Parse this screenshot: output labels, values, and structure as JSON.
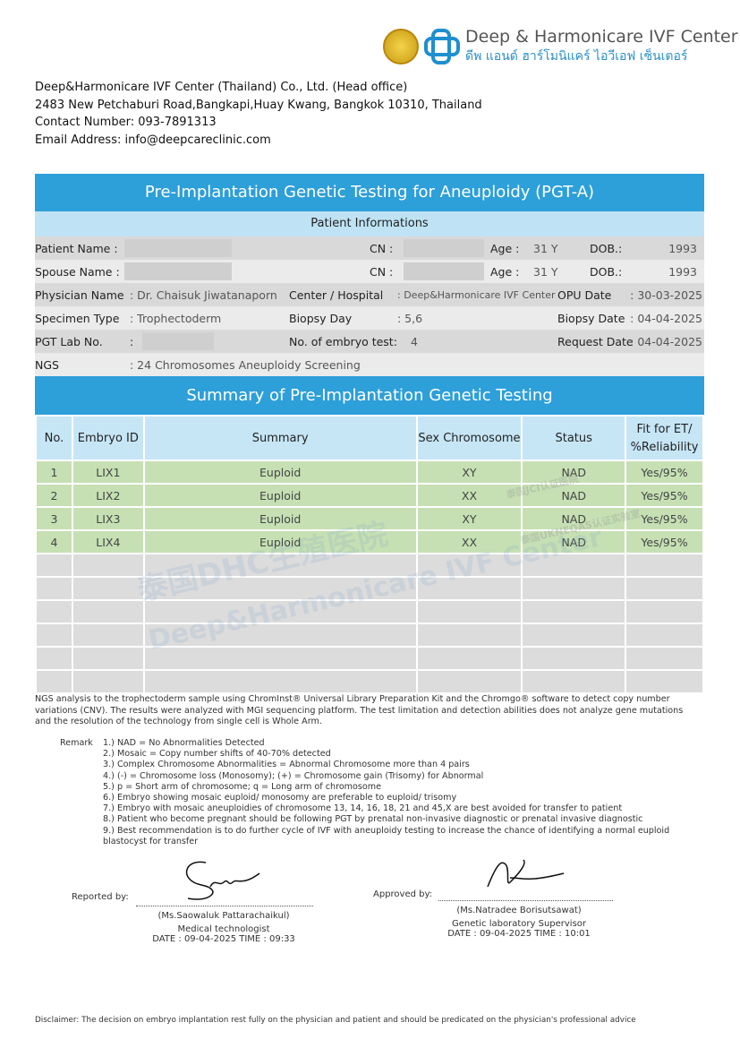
{
  "header": {
    "brand_en": "Deep & Harmonicare IVF Center",
    "brand_th": "ดีพ แอนด์ ฮาร์โมนิแคร์ ไอวีเอฟ เซ็นเตอร์",
    "address": [
      "Deep&Harmonicare IVF Center (Thailand) Co., Ltd. (Head office)",
      "2483 New Petchaburi Road,Bangkapi,Huay Kwang, Bangkok 10310, Thailand",
      "Contact Number: 093-7891313",
      "Email Address: info@deepcareclinic.com"
    ]
  },
  "title": "Pre-Implantation Genetic Testing for Aneuploidy (PGT-A)",
  "patient": {
    "heading": "Patient Informations",
    "patient_name_label": "Patient Name :",
    "cn_label": "CN :",
    "age_label": "Age :",
    "dob_label": "DOB.:",
    "patient_age": "31 Y",
    "patient_dob": "1993",
    "spouse_name_label": "Spouse Name :",
    "spouse_age": "31 Y",
    "spouse_dob": "1993",
    "physician_label": "Physician Name",
    "physician": ": Dr. Chaisuk Jiwatanaporn",
    "center_label": "Center / Hospital",
    "center": ": Deep&Harmonicare IVF Center",
    "opu_label": "OPU Date",
    "opu": ": 30-03-2025",
    "specimen_label": "Specimen Type",
    "specimen": ": Trophectoderm",
    "biopsy_day_label": "Biopsy Day",
    "biopsy_day": ":  5,6",
    "biopsy_date_label": "Biopsy Date",
    "biopsy_date": ": 04-04-2025",
    "lab_label": "PGT Lab No.",
    "lab_colon": ":",
    "embryo_count_label": "No. of embryo test:",
    "embryo_count": "4",
    "request_label": "Request Date",
    "request_date": ": 04-04-2025",
    "ngs_label": "NGS",
    "ngs": ": 24 Chromosomes Aneuploidy Screening"
  },
  "summary": {
    "heading": "Summary of Pre-Implantation Genetic Testing",
    "columns": [
      "No.",
      "Embryo ID",
      "Summary",
      "Sex Chromosome",
      "Status",
      "Fit for ET/",
      "%Reliability"
    ],
    "rows": [
      [
        "1",
        "LIX1",
        "Euploid",
        "XY",
        "NAD",
        "Yes/95%"
      ],
      [
        "2",
        "LIX2",
        "Euploid",
        "XX",
        "NAD",
        "Yes/95%"
      ],
      [
        "3",
        "LIX3",
        "Euploid",
        "XY",
        "NAD",
        "Yes/95%"
      ],
      [
        "4",
        "LIX4",
        "Euploid",
        "XX",
        "NAD",
        "Yes/95%"
      ]
    ]
  },
  "note": "NGS analysis to the trophectoderm sample using ChromInst® Universal Library Preparation Kit and the Chromgo® software to detect copy number variations (CNV). The results were analyzed with MGI sequencing platform. The test limitation and detection abilities does not analyze gene mutations and the resolution of the technology from single cell is Whole Arm.",
  "remark": {
    "label": "Remark",
    "items": [
      "1.) NAD = No Abnormalities Detected",
      "2.) Mosaic = Copy number shifts of 40-70% detected",
      "3.) Complex Chromosome Abnormalities = Abnormal Chromosome more than 4 pairs",
      "4.) (-) = Chromosome loss (Monosomy); (+) = Chromosome gain (Trisomy) for Abnormal",
      "5.) p = Short arm of chromosome; q = Long arm of chromosome",
      "6.) Embryo showing mosaic euploid/ monosomy are preferable to euploid/ trisomy",
      "7.) Embryo with mosaic aneuploidies of chromosome 13, 14, 16, 18, 21 and 45,X are best avoided for transfer to patient",
      "8.) Patient who become pregnant should be following PGT by prenatal non-invasive diagnostic or prenatal invasive diagnostic",
      "9.) Best recommendation is to do further cycle of IVF with aneuploidy testing to increase the chance of identifying a normal euploid blastocyst for transfer"
    ]
  },
  "signatures": {
    "reported_label": "Reported by:",
    "reporter": "(Ms.Saowaluk Pattarachaikul)",
    "reporter_role": "Medical technologist",
    "reporter_date": "DATE : 09-04-2025 TIME : 09:33",
    "approved_label": "Approved by:",
    "approver": "(Ms.Natradee Borisutsawat)",
    "approver_role": "Genetic laboratory Supervisor",
    "approver_date": "DATE : 09-04-2025 TIME : 10:01"
  },
  "watermark": {
    "line1": "泰国DHC生殖医院",
    "line2": "Deep&Harmonicare IVF Center",
    "stamp1": "泰国JCI认证医院",
    "stamp2": "泰国UKNEQAS认证实验室"
  },
  "disclaimer": "Disclaimer: The decision on embryo implantation rest fully on the physician and patient and should be predicated on the physician's professional advice"
}
